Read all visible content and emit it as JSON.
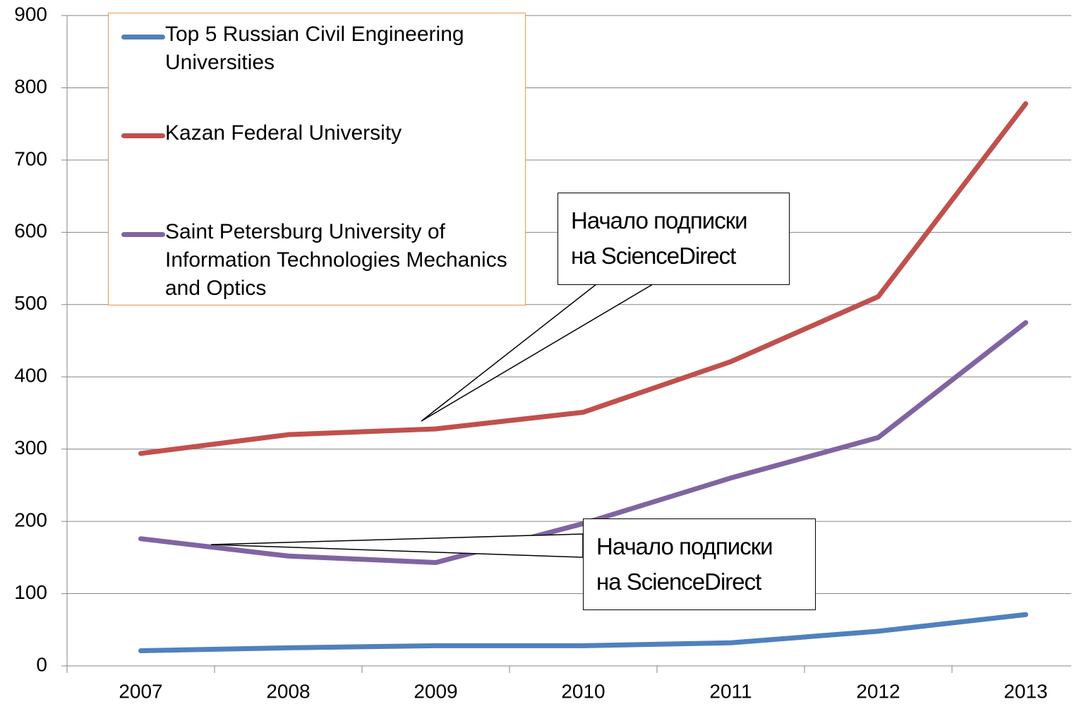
{
  "chart_data": {
    "type": "line",
    "categories": [
      "2007",
      "2008",
      "2009",
      "2010",
      "2011",
      "2012",
      "2013"
    ],
    "series": [
      {
        "name": "Top 5 Russian Civil Engineering Universities",
        "color": "#4f81bd",
        "values": [
          21,
          25,
          28,
          28,
          32,
          48,
          71
        ]
      },
      {
        "name": "Kazan Federal University",
        "color": "#c0504d",
        "values": [
          294,
          320,
          328,
          351,
          421,
          511,
          778
        ]
      },
      {
        "name": "Saint Petersburg University of Information Technologies Mechanics and Optics",
        "color": "#8064a2",
        "values": [
          176,
          152,
          143,
          197,
          260,
          316,
          475
        ]
      }
    ],
    "annotations": [
      "Начало подписки на ScienceDirect",
      "Начало подписки на ScienceDirect"
    ],
    "ylim": [
      0,
      900
    ],
    "yticks": [
      0,
      100,
      200,
      300,
      400,
      500,
      600,
      700,
      800,
      900
    ],
    "grid": true
  }
}
